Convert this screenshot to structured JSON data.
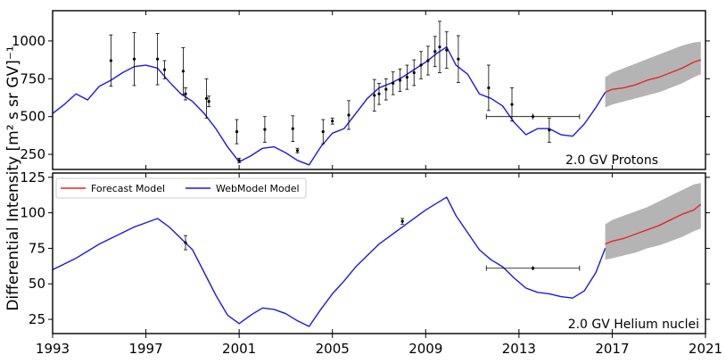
{
  "figure": {
    "ylabel": "Differential Intensity [m² s sr GV]⁻¹",
    "xlim": [
      1993,
      2021
    ],
    "xticks": [
      "1993",
      "1997",
      "2001",
      "2005",
      "2009",
      "2013",
      "2017",
      "2021"
    ]
  },
  "legend": {
    "forecast_label": "Forecast Model",
    "webmodel_label": "WebModel Model"
  },
  "colors": {
    "forecast": "#e8242a",
    "webmodel": "#1a1ae6",
    "band": "#b4b4b4",
    "data": "#000000"
  },
  "chart_data": [
    {
      "type": "line",
      "title": "2.0 GV Protons",
      "ylim": [
        150,
        1200
      ],
      "yticks": [
        "250",
        "500",
        "750",
        "1000"
      ],
      "series": [
        {
          "name": "WebModel Model",
          "x": [
            1993.0,
            1993.5,
            1994.0,
            1994.5,
            1995.0,
            1995.5,
            1996.0,
            1996.5,
            1997.0,
            1997.5,
            1998.0,
            1998.5,
            1999.0,
            1999.5,
            2000.0,
            2000.5,
            2001.0,
            2001.5,
            2002.0,
            2002.5,
            2003.0,
            2003.5,
            2004.0,
            2004.5,
            2005.0,
            2005.5,
            2006.0,
            2006.5,
            2007.0,
            2007.5,
            2008.0,
            2008.5,
            2009.0,
            2009.5,
            2009.9,
            2010.3,
            2010.8,
            2011.3,
            2011.8,
            2012.3,
            2012.8,
            2013.3,
            2013.8,
            2014.3,
            2014.8,
            2015.3,
            2015.8,
            2016.3,
            2016.7
          ],
          "y": [
            520,
            580,
            650,
            610,
            700,
            740,
            790,
            830,
            840,
            820,
            730,
            650,
            600,
            520,
            420,
            300,
            200,
            240,
            290,
            300,
            260,
            210,
            180,
            300,
            390,
            420,
            520,
            620,
            690,
            720,
            760,
            810,
            860,
            920,
            960,
            840,
            780,
            650,
            620,
            570,
            460,
            380,
            420,
            420,
            380,
            370,
            450,
            560,
            660
          ]
        },
        {
          "name": "Forecast Model",
          "x": [
            2016.7,
            2017.0,
            2017.5,
            2018.0,
            2018.5,
            2019.0,
            2019.5,
            2020.0,
            2020.5,
            2020.8
          ],
          "y": [
            660,
            680,
            690,
            710,
            740,
            760,
            790,
            820,
            860,
            875
          ]
        }
      ],
      "uncertainty_band": {
        "x": [
          2016.7,
          2017.0,
          2017.5,
          2018.0,
          2018.5,
          2019.0,
          2019.5,
          2020.0,
          2020.5,
          2020.8
        ],
        "lower": [
          560,
          580,
          600,
          620,
          640,
          660,
          690,
          720,
          760,
          780
        ],
        "upper": [
          760,
          790,
          820,
          850,
          880,
          910,
          940,
          970,
          990,
          995
        ]
      },
      "measurements": [
        {
          "x": 1995.5,
          "y": 870,
          "err": 170
        },
        {
          "x": 1996.5,
          "y": 880,
          "err": 175
        },
        {
          "x": 1997.5,
          "y": 880,
          "err": 170
        },
        {
          "x": 1997.8,
          "y": 810,
          "err": 60
        },
        {
          "x": 1998.6,
          "y": 800,
          "err": 155
        },
        {
          "x": 1998.7,
          "y": 650,
          "err": 40
        },
        {
          "x": 1999.6,
          "y": 620,
          "err": 130
        },
        {
          "x": 1999.7,
          "y": 600,
          "err": 35
        },
        {
          "x": 2000.9,
          "y": 400,
          "err": 80
        },
        {
          "x": 2001.0,
          "y": 210,
          "err": 15
        },
        {
          "x": 2002.1,
          "y": 415,
          "err": 85
        },
        {
          "x": 2003.3,
          "y": 420,
          "err": 85
        },
        {
          "x": 2003.5,
          "y": 275,
          "err": 15
        },
        {
          "x": 2004.6,
          "y": 400,
          "err": 80
        },
        {
          "x": 2005.7,
          "y": 510,
          "err": 95
        },
        {
          "x": 2005.0,
          "y": 470,
          "err": 20
        },
        {
          "x": 2006.8,
          "y": 640,
          "err": 105
        },
        {
          "x": 2007.0,
          "y": 650,
          "err": 70
        },
        {
          "x": 2007.3,
          "y": 680,
          "err": 70
        },
        {
          "x": 2007.6,
          "y": 720,
          "err": 75
        },
        {
          "x": 2007.9,
          "y": 740,
          "err": 75
        },
        {
          "x": 2008.2,
          "y": 760,
          "err": 80
        },
        {
          "x": 2008.5,
          "y": 790,
          "err": 85
        },
        {
          "x": 2008.8,
          "y": 840,
          "err": 90
        },
        {
          "x": 2009.1,
          "y": 870,
          "err": 95
        },
        {
          "x": 2009.4,
          "y": 930,
          "err": 100
        },
        {
          "x": 2009.6,
          "y": 960,
          "err": 170
        },
        {
          "x": 2009.9,
          "y": 940,
          "err": 120
        },
        {
          "x": 2010.4,
          "y": 880,
          "err": 155
        },
        {
          "x": 2011.7,
          "y": 690,
          "err": 150
        },
        {
          "x": 2012.7,
          "y": 580,
          "err": 110
        },
        {
          "x": 2014.3,
          "y": 410,
          "err": 80
        }
      ],
      "horizontal_interval": {
        "x_start": 2011.6,
        "x_end": 2015.6,
        "y": 500,
        "err": 20
      }
    },
    {
      "type": "line",
      "title": "2.0 GV Helium nuclei",
      "ylim": [
        15,
        128
      ],
      "yticks": [
        "25",
        "50",
        "75",
        "100",
        "125"
      ],
      "series": [
        {
          "name": "WebModel Model",
          "x": [
            1993.0,
            1993.5,
            1994.0,
            1994.5,
            1995.0,
            1995.5,
            1996.0,
            1996.5,
            1997.0,
            1997.5,
            1998.0,
            1998.5,
            1999.0,
            1999.5,
            2000.0,
            2000.5,
            2001.0,
            2001.5,
            2002.0,
            2002.5,
            2003.0,
            2003.5,
            2004.0,
            2004.5,
            2005.0,
            2005.5,
            2006.0,
            2006.5,
            2007.0,
            2007.5,
            2008.0,
            2008.5,
            2009.0,
            2009.5,
            2009.9,
            2010.3,
            2010.8,
            2011.3,
            2011.8,
            2012.3,
            2012.8,
            2013.3,
            2013.8,
            2014.3,
            2014.8,
            2015.3,
            2015.8,
            2016.3,
            2016.7
          ],
          "y": [
            60,
            64,
            68,
            73,
            78,
            82,
            86,
            90,
            93,
            96,
            90,
            82,
            74,
            58,
            42,
            28,
            22,
            28,
            33,
            32,
            29,
            24,
            20,
            32,
            43,
            52,
            62,
            70,
            78,
            84,
            90,
            96,
            102,
            107,
            111,
            98,
            86,
            74,
            67,
            62,
            54,
            47,
            44,
            43,
            41,
            40,
            45,
            58,
            75
          ]
        },
        {
          "name": "Forecast Model",
          "x": [
            2016.7,
            2017.0,
            2017.5,
            2018.0,
            2018.5,
            2019.0,
            2019.5,
            2020.0,
            2020.5,
            2020.8
          ],
          "y": [
            78,
            80,
            82,
            85,
            88,
            91,
            95,
            99,
            102,
            106
          ]
        }
      ],
      "uncertainty_band": {
        "x": [
          2016.7,
          2017.0,
          2017.5,
          2018.0,
          2018.5,
          2019.0,
          2019.5,
          2020.0,
          2020.5,
          2020.8
        ],
        "lower": [
          67,
          68,
          70,
          72,
          75,
          77,
          80,
          83,
          87,
          89
        ],
        "upper": [
          92,
          95,
          98,
          101,
          104,
          108,
          112,
          116,
          120,
          121
        ]
      },
      "measurements": [
        {
          "x": 1998.7,
          "y": 79,
          "err": 5
        },
        {
          "x": 2008.0,
          "y": 94,
          "err": 2
        }
      ],
      "horizontal_interval": {
        "x_start": 2011.6,
        "x_end": 2015.6,
        "y": 61,
        "err": 1.5
      }
    }
  ]
}
